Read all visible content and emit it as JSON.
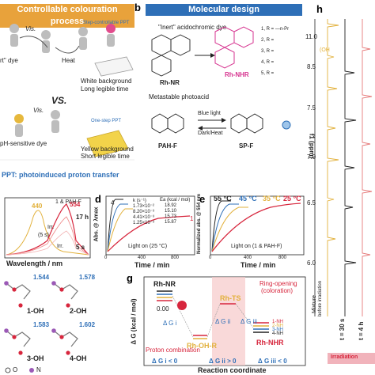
{
  "panels": {
    "a": {
      "label": "a",
      "banner": "Controllable colouration process",
      "dye_text": "rt\" dye",
      "vis1": "Vis.",
      "heat": "Heat",
      "step_label": "Step-controllable PPT",
      "result1a": "White background",
      "result1b": "Long legible time",
      "vs": "VS.",
      "vis2": "Vis.",
      "acidic_dye": "pH-sensitive dye",
      "one_step": "One-step PPT",
      "result2a": "Yellow background",
      "result2b": "Short legible time",
      "ppt_note": "PPT: photoinduced proton transfer"
    },
    "b": {
      "label": "b",
      "banner": "Molecular design",
      "inert": "\"Inert\" acidochromic dye",
      "rhnr": "Rh-NR",
      "rhnhr": "Rh-NHR",
      "r_list": [
        "1, R = —n-Pr",
        "2, R =",
        "3, R =",
        "4, R =",
        "5, R ="
      ],
      "metastable": "Metastable photoacid",
      "blue_light": "Blue light",
      "dark_heat": "Dark/Heat",
      "pahf": "PAH-F",
      "spf": "SP-F"
    },
    "c": {
      "label": "",
      "legend": "1 & PAH-F",
      "peak440": "440",
      "peak554": "554",
      "t17": "17 h",
      "t5": "5 s",
      "irr1": "Irr.",
      "irr2": "(5 s)",
      "irr3": "Irr.",
      "xlabel": "Wavelength / nm"
    },
    "d": {
      "label": "d",
      "ylabel": "Abs. @ λmax",
      "xlabel": "Time / min",
      "light_note": "Light on (25 °C)",
      "table_head": [
        "k (s⁻¹)",
        "Ea (kcal / mol)"
      ],
      "table_rows": [
        [
          "1.73×10⁻²",
          "18.92"
        ],
        [
          "8.20×10⁻³",
          "15.10"
        ],
        [
          "4.41×10⁻³",
          "15.73"
        ],
        [
          "1.25×10⁻³",
          "15.87"
        ]
      ],
      "xticks": [
        "0",
        "200",
        "400",
        "600",
        "800",
        "1000"
      ],
      "curve_labels": [
        "4",
        "3",
        "2",
        "1"
      ]
    },
    "e": {
      "label": "e",
      "ylabel": "Normalized abs. @ 554 nm",
      "xlabel": "Time / min",
      "light_note": "Light on (1 & PAH-F)",
      "temps": [
        "55 °C",
        "45 °C",
        "35 °C",
        "25 °C"
      ],
      "xticks": [
        "0",
        "200",
        "400",
        "600",
        "800",
        "1000"
      ]
    },
    "f_struct": {
      "labels": [
        "1.544",
        "1.578",
        "1.583",
        "1.602"
      ],
      "names": [
        "1-OH",
        "2-OH",
        "3-OH",
        "4-OH"
      ],
      "atoms": [
        "O",
        "N"
      ]
    },
    "g": {
      "label": "g",
      "ylabel": "Δ G (kcal / mol)",
      "xlabel": "Reaction coordinate",
      "rhnr": "Rh-NR",
      "ts": "Rh-TS",
      "ohr": "Rh-OH-R",
      "nhr": "Rh-NHR",
      "zero": "0.00",
      "ring": "Ring-opening",
      "color": "(coloration)",
      "proton": "Proton combination",
      "dgi": "Δ G i",
      "dgii": "Δ G ii",
      "dgiii": "Δ G iii",
      "cond1": "Δ G i < 0",
      "cond2": "Δ G ii > 0",
      "cond3": "Δ G iii < 0",
      "nh_labels": [
        "1-NH",
        "2-NH",
        "3-NH",
        "4-NH"
      ]
    },
    "h": {
      "label": "h",
      "axis": "f1 (ppm)",
      "yticks": [
        "11.0",
        "8.5",
        "7.5",
        "7.0",
        "6.5",
        "6.0"
      ],
      "oh": "(OH",
      "mixture": "Mixture",
      "before": "before irradiation",
      "t1": "t = 30 s",
      "t2": "t = 4 h",
      "irradiation": "Irradiation"
    }
  },
  "colors": {
    "banner_orange": "#e8a23b",
    "banner_blue": "#2e6fb7",
    "rh_magenta": "#d6338f",
    "spectrum_red": "#d7263d",
    "spectrum_yellow": "#e2b13c",
    "pink_band": "#f6c9c9"
  }
}
